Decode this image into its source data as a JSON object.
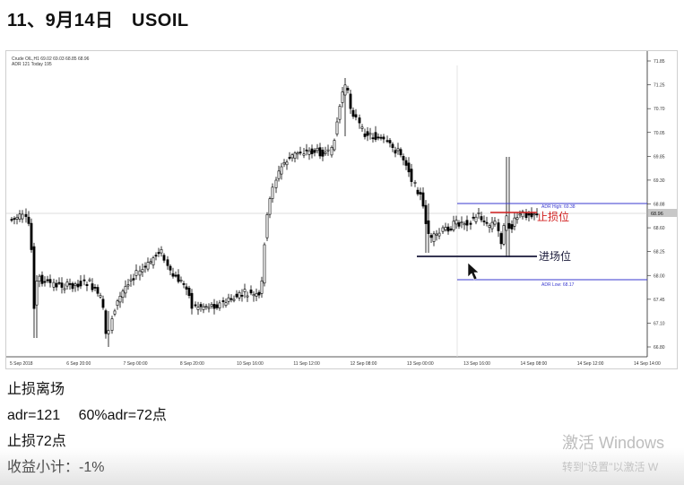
{
  "title": "11、9月14日　USOIL",
  "chart_data": {
    "type": "candlestick",
    "title": "",
    "header_line1": "Crude OIL,H1 69.02 69.03 68.85 68.96",
    "header_line2": "ADR 121   Today 195",
    "y_ticks": [
      "71.85",
      "71.25",
      "70.70",
      "70.05",
      "69.85",
      "69.30",
      "68.88",
      "68.60",
      "68.25",
      "68.00",
      "67.45",
      "67.10",
      "66.80"
    ],
    "x_ticks": [
      "5 Sep 2018",
      "6 Sep 20:00",
      "7 Sep 00:00",
      "8 Sep 20:00",
      "10 Sep 16:00",
      "11 Sep 12:00",
      "12 Sep 08:00",
      "13 Sep 00:00",
      "13 Sep 16:00",
      "14 Sep 08:00",
      "14 Sep 12:00",
      "14 Sep 14:00"
    ],
    "current_price": "68.96",
    "adr_high_label": "ADR High: 69.38",
    "adr_low_label": "ADR Low: 68.17",
    "stop_loss_label": "止损位",
    "entry_label": "进场位",
    "colors": {
      "candle": "#000000",
      "adr_line": "#3a3acf",
      "stop_line": "#d22020",
      "entry_line": "#1a1a3a",
      "price_line": "#999999",
      "tag_bg": "#c8c8c8"
    }
  },
  "notes": [
    "止损离场",
    "adr=121　 60%adr=72点",
    "止损72点",
    "收益小计：-1%"
  ],
  "watermark": {
    "line1": "激活 Windows",
    "line2": "转到\"设置\"以激活 W"
  }
}
